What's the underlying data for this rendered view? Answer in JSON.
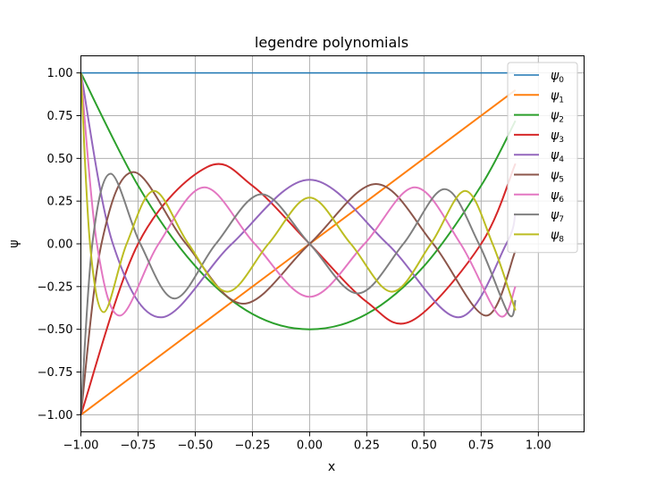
{
  "chart_data": {
    "type": "line",
    "title": "legendre polynomials",
    "xlabel": "x",
    "ylabel": "ψ",
    "xlim": [
      -1.0,
      1.2
    ],
    "ylim": [
      -1.1,
      1.1
    ],
    "xticks": [
      -1.0,
      -0.75,
      -0.5,
      -0.25,
      0.0,
      0.25,
      0.5,
      0.75,
      1.0
    ],
    "xtick_labels": [
      "−1.00",
      "−0.75",
      "−0.50",
      "−0.25",
      "0.00",
      "0.25",
      "0.50",
      "0.75",
      "1.00"
    ],
    "yticks": [
      1.0,
      0.75,
      0.5,
      0.25,
      0.0,
      -0.25,
      -0.5,
      -0.75,
      -1.0
    ],
    "ytick_labels": [
      "1.00",
      "0.75",
      "0.50",
      "0.25",
      "0.00",
      "−0.25",
      "−0.50",
      "−0.75",
      "−1.00"
    ],
    "grid": true,
    "legend_position": "top-right",
    "series": [
      {
        "name": "ψ",
        "sub": "0",
        "color": "#1f77b4",
        "width": 1.5,
        "x": [
          -1.0,
          0.0,
          0.9
        ],
        "y": [
          1.0,
          1.0,
          1.0
        ]
      },
      {
        "name": "ψ",
        "sub": "1",
        "color": "#ff7f0e",
        "width": 2.0,
        "x": [
          -1.0,
          0.0,
          0.9
        ],
        "y": [
          -1.0,
          0.0,
          0.9
        ]
      },
      {
        "name": "ψ",
        "sub": "2",
        "color": "#2ca02c",
        "width": 2.0,
        "x": [
          -1.0,
          -0.75,
          -0.5,
          -0.25,
          0.0,
          0.25,
          0.5,
          0.75,
          0.9
        ],
        "y": [
          1.0,
          0.34,
          -0.13,
          -0.41,
          -0.5,
          -0.41,
          -0.13,
          0.34,
          0.72
        ]
      },
      {
        "name": "ψ",
        "sub": "3",
        "color": "#d62728",
        "width": 2.0,
        "x": [
          -1.0,
          -0.75,
          -0.447,
          -0.25,
          0.0,
          0.25,
          0.447,
          0.75,
          0.9
        ],
        "y": [
          -1.0,
          0.0,
          0.45,
          0.34,
          0.0,
          -0.34,
          -0.45,
          0.0,
          0.47
        ]
      },
      {
        "name": "ψ",
        "sub": "4",
        "color": "#9467bd",
        "width": 2.0,
        "x": [
          -1.0,
          -0.86,
          -0.65,
          -0.34,
          0.0,
          0.34,
          0.65,
          0.86,
          0.9
        ],
        "y": [
          1.0,
          0.0,
          -0.43,
          0.0,
          0.375,
          0.0,
          -0.43,
          0.0,
          0.18
        ]
      },
      {
        "name": "ψ",
        "sub": "5",
        "color": "#8c564b",
        "width": 2.0,
        "x": [
          -1.0,
          -0.91,
          -0.77,
          -0.54,
          -0.29,
          0.0,
          0.29,
          0.54,
          0.77,
          0.9
        ],
        "y": [
          -1.0,
          0.0,
          0.42,
          0.0,
          -0.35,
          0.0,
          0.35,
          0.0,
          -0.42,
          -0.04
        ]
      },
      {
        "name": "ψ",
        "sub": "6",
        "color": "#e377c2",
        "width": 2.0,
        "x": [
          -1.0,
          -0.93,
          -0.83,
          -0.66,
          -0.46,
          -0.24,
          0.0,
          0.24,
          0.46,
          0.66,
          0.83,
          0.9
        ],
        "y": [
          1.0,
          0.0,
          -0.42,
          0.0,
          0.33,
          0.0,
          -0.31,
          0.0,
          0.33,
          0.0,
          -0.42,
          -0.25
        ]
      },
      {
        "name": "ψ",
        "sub": "7",
        "color": "#7f7f7f",
        "width": 2.0,
        "x": [
          -1.0,
          -0.95,
          -0.87,
          -0.74,
          -0.59,
          -0.41,
          -0.21,
          0.0,
          0.21,
          0.41,
          0.59,
          0.74,
          0.87,
          0.9
        ],
        "y": [
          -1.0,
          0.0,
          0.41,
          0.0,
          -0.32,
          0.0,
          0.29,
          0.0,
          -0.29,
          0.0,
          0.32,
          0.0,
          -0.41,
          -0.33
        ]
      },
      {
        "name": "ψ",
        "sub": "8",
        "color": "#bcbd22",
        "width": 2.0,
        "x": [
          -1.0,
          -0.96,
          -0.9,
          -0.8,
          -0.68,
          -0.53,
          -0.36,
          -0.18,
          0.0,
          0.18,
          0.36,
          0.53,
          0.68,
          0.8,
          0.9
        ],
        "y": [
          1.0,
          0.0,
          -0.4,
          0.0,
          0.31,
          0.0,
          -0.28,
          0.0,
          0.27,
          0.0,
          -0.28,
          0.0,
          0.31,
          0.0,
          -0.39
        ]
      }
    ]
  }
}
